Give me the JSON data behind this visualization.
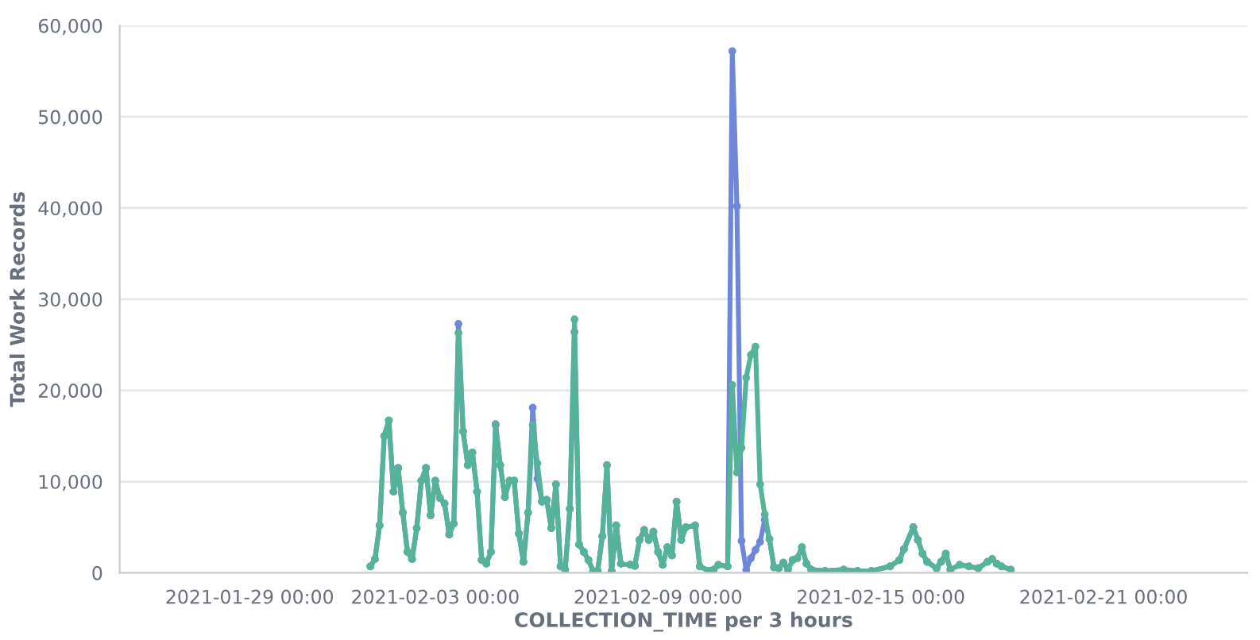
{
  "chart_data": {
    "type": "line",
    "xlabel": "COLLECTION_TIME per 3 hours",
    "ylabel": "Total Work Records",
    "x": [
      "2021-02-01T06:00",
      "2021-02-01T09:00",
      "2021-02-01T12:00",
      "2021-02-01T15:00",
      "2021-02-01T18:00",
      "2021-02-01T21:00",
      "2021-02-02T00:00",
      "2021-02-02T03:00",
      "2021-02-02T06:00",
      "2021-02-02T09:00",
      "2021-02-02T12:00",
      "2021-02-02T15:00",
      "2021-02-02T18:00",
      "2021-02-02T21:00",
      "2021-02-03T00:00",
      "2021-02-03T03:00",
      "2021-02-03T06:00",
      "2021-02-03T09:00",
      "2021-02-03T12:00",
      "2021-02-03T15:00",
      "2021-02-03T18:00",
      "2021-02-03T21:00",
      "2021-02-04T00:00",
      "2021-02-04T03:00",
      "2021-02-04T06:00",
      "2021-02-04T09:00",
      "2021-02-04T12:00",
      "2021-02-04T15:00",
      "2021-02-04T18:00",
      "2021-02-04T21:00",
      "2021-02-05T00:00",
      "2021-02-05T03:00",
      "2021-02-05T06:00",
      "2021-02-05T09:00",
      "2021-02-05T12:00",
      "2021-02-05T15:00",
      "2021-02-05T18:00",
      "2021-02-05T21:00",
      "2021-02-06T00:00",
      "2021-02-06T03:00",
      "2021-02-06T06:00",
      "2021-02-06T09:00",
      "2021-02-06T12:00",
      "2021-02-06T15:00",
      "2021-02-06T18:00",
      "2021-02-06T21:00",
      "2021-02-07T00:00",
      "2021-02-07T03:00",
      "2021-02-07T06:00",
      "2021-02-07T09:00",
      "2021-02-07T12:00",
      "2021-02-07T15:00",
      "2021-02-07T18:00",
      "2021-02-07T21:00",
      "2021-02-08T00:00",
      "2021-02-08T06:00",
      "2021-02-08T09:00",
      "2021-02-08T12:00",
      "2021-02-08T15:00",
      "2021-02-08T18:00",
      "2021-02-08T21:00",
      "2021-02-09T00:00",
      "2021-02-09T03:00",
      "2021-02-09T06:00",
      "2021-02-09T09:00",
      "2021-02-09T12:00",
      "2021-02-09T15:00",
      "2021-02-09T18:00",
      "2021-02-10T00:00",
      "2021-02-10T03:00",
      "2021-02-10T09:00",
      "2021-02-10T12:00",
      "2021-02-10T15:00",
      "2021-02-10T21:00",
      "2021-02-11T00:00",
      "2021-02-11T03:00",
      "2021-02-11T06:00",
      "2021-02-11T09:00",
      "2021-02-11T12:00",
      "2021-02-11T15:00",
      "2021-02-11T18:00",
      "2021-02-11T21:00",
      "2021-02-12T00:00",
      "2021-02-12T03:00",
      "2021-02-12T06:00",
      "2021-02-12T09:00",
      "2021-02-12T12:00",
      "2021-02-12T15:00",
      "2021-02-12T18:00",
      "2021-02-12T21:00",
      "2021-02-13T00:00",
      "2021-02-13T03:00",
      "2021-02-13T12:00",
      "2021-02-14T00:00",
      "2021-02-14T09:00",
      "2021-02-14T18:00",
      "2021-02-15T06:00",
      "2021-02-15T12:00",
      "2021-02-15T15:00",
      "2021-02-15T21:00",
      "2021-02-16T00:00",
      "2021-02-16T03:00",
      "2021-02-16T06:00",
      "2021-02-16T12:00",
      "2021-02-16T15:00",
      "2021-02-16T18:00",
      "2021-02-16T21:00",
      "2021-02-17T03:00",
      "2021-02-17T09:00",
      "2021-02-17T15:00",
      "2021-02-17T21:00",
      "2021-02-18T00:00",
      "2021-02-18T03:00",
      "2021-02-18T06:00",
      "2021-02-18T12:00"
    ],
    "series": [
      {
        "color": "#6f87d8",
        "values": [
          700,
          1500,
          5200,
          15000,
          16700,
          8900,
          11500,
          6600,
          2300,
          1500,
          4900,
          10100,
          11500,
          6300,
          10100,
          8200,
          7600,
          4200,
          5400,
          27300,
          15500,
          11800,
          13200,
          8900,
          1400,
          1000,
          2300,
          16300,
          11800,
          8300,
          10100,
          10100,
          4300,
          1200,
          6600,
          18100,
          10300,
          7800,
          8000,
          4900,
          9700,
          700,
          350,
          7000,
          26400,
          3100,
          2300,
          1400,
          200,
          200,
          4000,
          11800,
          200,
          5200,
          1000,
          900,
          750,
          3600,
          4700,
          3600,
          4500,
          2300,
          870,
          2800,
          1900,
          7800,
          3600,
          5000,
          5200,
          700,
          200,
          350,
          870,
          700,
          57200,
          40200,
          3500,
          300,
          1600,
          2500,
          3400,
          5800,
          3700,
          600,
          500,
          1100,
          350,
          1400,
          1600,
          2800,
          1000,
          350,
          200,
          350,
          200,
          200,
          700,
          1400,
          2600,
          5000,
          3600,
          2100,
          1200,
          500,
          1200,
          2100,
          350,
          870,
          700,
          500,
          1200,
          1500,
          1000,
          700,
          350
        ]
      },
      {
        "color": "#54b399",
        "values": [
          700,
          1500,
          5200,
          15000,
          16700,
          8900,
          11500,
          6600,
          2300,
          1500,
          4900,
          10100,
          11500,
          6300,
          10100,
          8200,
          7600,
          4200,
          5400,
          26300,
          15500,
          11800,
          13200,
          8900,
          1400,
          1000,
          2300,
          16200,
          11800,
          8300,
          10100,
          10100,
          4300,
          1200,
          6600,
          16200,
          12000,
          7800,
          8000,
          4900,
          9700,
          700,
          350,
          7000,
          27800,
          3100,
          2300,
          1400,
          200,
          200,
          4000,
          11800,
          200,
          5200,
          1000,
          900,
          750,
          3600,
          4700,
          3600,
          4500,
          2300,
          870,
          2800,
          1900,
          7800,
          3600,
          5000,
          5200,
          700,
          200,
          350,
          870,
          700,
          20600,
          11000,
          13700,
          21400,
          23900,
          24800,
          9700,
          6400,
          3700,
          600,
          500,
          1100,
          350,
          1400,
          1600,
          2800,
          1000,
          350,
          200,
          350,
          200,
          200,
          700,
          1400,
          2600,
          5000,
          3600,
          2100,
          1200,
          500,
          1200,
          2100,
          350,
          870,
          700,
          500,
          1200,
          1500,
          1000,
          700,
          350
        ]
      }
    ],
    "xlim": [
      "2021-01-25T12:00",
      "2021-02-24T21:00"
    ],
    "xticks": [
      {
        "value": "2021-01-29T00:00",
        "label": "2021-01-29 00:00"
      },
      {
        "value": "2021-02-03T00:00",
        "label": "2021-02-03 00:00"
      },
      {
        "value": "2021-02-09T00:00",
        "label": "2021-02-09 00:00"
      },
      {
        "value": "2021-02-15T00:00",
        "label": "2021-02-15 00:00"
      },
      {
        "value": "2021-02-21T00:00",
        "label": "2021-02-21 00:00"
      }
    ],
    "ylim": [
      0,
      60000
    ],
    "yticks": [
      {
        "value": 0,
        "label": "0"
      },
      {
        "value": 10000,
        "label": "10,000"
      },
      {
        "value": 20000,
        "label": "20,000"
      },
      {
        "value": 30000,
        "label": "30,000"
      },
      {
        "value": 40000,
        "label": "40,000"
      },
      {
        "value": 50000,
        "label": "50,000"
      },
      {
        "value": 60000,
        "label": "60,000"
      }
    ],
    "grid": "y",
    "legend": false,
    "marker": "circle",
    "line_style": "solid"
  }
}
